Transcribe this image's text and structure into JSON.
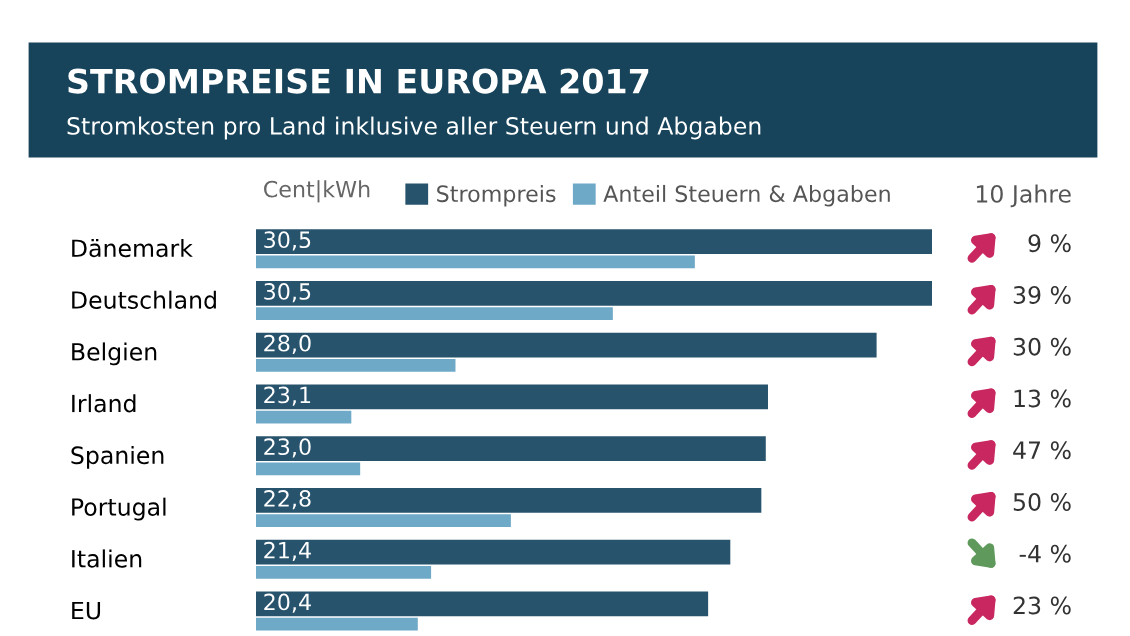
{
  "chart_data": {
    "type": "bar",
    "orientation": "horizontal",
    "title": "STROMPREISE IN EUROPA 2017",
    "subtitle": "Stromkosten pro Land inklusive aller Steuern und Abgaben",
    "xlabel": "Cent|kWh",
    "categories": [
      "Dänemark",
      "Deutschland",
      "Belgien",
      "Irland",
      "Spanien",
      "Portugal",
      "Italien",
      "EU"
    ],
    "series": [
      {
        "name": "Strompreis",
        "color": "#28536d",
        "values": [
          30.5,
          30.5,
          28.0,
          23.1,
          23.0,
          22.8,
          21.4,
          20.4
        ],
        "value_labels": [
          "30,5",
          "30,5",
          "28,0",
          "23,1",
          "23,0",
          "22,8",
          "21,4",
          "20,4"
        ]
      },
      {
        "name": "Anteil Steuern & Abgaben",
        "color": "#6ea9c8",
        "values": [
          19.8,
          16.1,
          9.0,
          4.3,
          4.7,
          11.5,
          7.9,
          7.3
        ]
      }
    ],
    "xlim": [
      0,
      30.5
    ],
    "tick_labels": "y",
    "grid": false,
    "legend": "top",
    "annotations": [
      "10 Jahre",
      "9 %",
      "39 %",
      "30 %",
      "13 %",
      "47 %",
      "50 %",
      "-4 %",
      "23 %"
    ]
  }
}
